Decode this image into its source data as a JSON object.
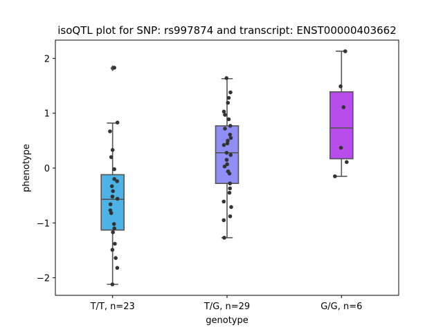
{
  "chart_data": {
    "type": "box",
    "title": "isoQTL plot for SNP: rs997874 and transcript: ENST00000403662",
    "xlabel": "genotype",
    "ylabel": "phenotype",
    "ylim": [
      -2.3,
      2.35
    ],
    "yticks": [
      -2,
      -1,
      0,
      1,
      2
    ],
    "yticklabels": [
      "−2",
      "−1",
      "0",
      "1",
      "2"
    ],
    "grid": false,
    "categories": [
      "T/T, n=23",
      "T/G, n=29",
      "G/G, n=6"
    ],
    "colors": [
      "#4db3e6",
      "#8f8ff5",
      "#b84ced"
    ],
    "point_color": "#333333",
    "boxes": [
      {
        "q1": -1.13,
        "median": -0.57,
        "q3": -0.12,
        "whisker_low": -2.12,
        "whisker_high": 0.82,
        "outliers": [
          1.82
        ]
      },
      {
        "q1": -0.28,
        "median": 0.28,
        "q3": 0.77,
        "whisker_low": -1.27,
        "whisker_high": 1.63,
        "outliers": []
      },
      {
        "q1": 0.17,
        "median": 0.73,
        "q3": 1.39,
        "whisker_low": -0.15,
        "whisker_high": 2.13,
        "outliers": []
      }
    ],
    "points": [
      [
        {
          "jx": 0.1,
          "y": 1.83
        },
        {
          "jx": -0.15,
          "y": 0.67
        },
        {
          "jx": 0.28,
          "y": 0.83
        },
        {
          "jx": 0.0,
          "y": 0.33
        },
        {
          "jx": -0.08,
          "y": 0.2
        },
        {
          "jx": 0.1,
          "y": -0.02
        },
        {
          "jx": 0.1,
          "y": -0.2
        },
        {
          "jx": 0.26,
          "y": -0.24
        },
        {
          "jx": -0.04,
          "y": -0.33
        },
        {
          "jx": 0.02,
          "y": -0.42
        },
        {
          "jx": -0.01,
          "y": -0.52
        },
        {
          "jx": 0.28,
          "y": -0.56
        },
        {
          "jx": -0.12,
          "y": -0.66
        },
        {
          "jx": -0.13,
          "y": -0.77
        },
        {
          "jx": -0.08,
          "y": -0.82
        },
        {
          "jx": 0.08,
          "y": -1.02
        },
        {
          "jx": 0.1,
          "y": -1.1
        },
        {
          "jx": 0.02,
          "y": -1.17
        },
        {
          "jx": 0.13,
          "y": -1.38
        },
        {
          "jx": -0.01,
          "y": -1.49
        },
        {
          "jx": 0.18,
          "y": -1.64
        },
        {
          "jx": 0.27,
          "y": -1.82
        },
        {
          "jx": -0.01,
          "y": -2.12
        }
      ],
      [
        {
          "jx": -0.03,
          "y": 1.64
        },
        {
          "jx": 0.2,
          "y": 1.38
        },
        {
          "jx": 0.1,
          "y": 1.28
        },
        {
          "jx": 0.05,
          "y": 1.19
        },
        {
          "jx": -0.18,
          "y": 1.03
        },
        {
          "jx": -0.12,
          "y": 0.97
        },
        {
          "jx": 0.1,
          "y": 0.89
        },
        {
          "jx": 0.19,
          "y": 0.77
        },
        {
          "jx": -0.12,
          "y": 0.72
        },
        {
          "jx": 0.17,
          "y": 0.61
        },
        {
          "jx": 0.22,
          "y": 0.55
        },
        {
          "jx": 0.04,
          "y": 0.5
        },
        {
          "jx": 0.02,
          "y": 0.45
        },
        {
          "jx": -0.18,
          "y": 0.42
        },
        {
          "jx": -0.02,
          "y": 0.28
        },
        {
          "jx": 0.21,
          "y": 0.24
        },
        {
          "jx": -0.02,
          "y": 0.15
        },
        {
          "jx": 0.01,
          "y": 0.07
        },
        {
          "jx": -0.14,
          "y": 0.03
        },
        {
          "jx": 0.06,
          "y": -0.06
        },
        {
          "jx": 0.14,
          "y": -0.1
        },
        {
          "jx": 0.17,
          "y": -0.28
        },
        {
          "jx": 0.17,
          "y": -0.37
        },
        {
          "jx": 0.14,
          "y": -0.45
        },
        {
          "jx": -0.19,
          "y": -0.61
        },
        {
          "jx": 0.24,
          "y": -0.71
        },
        {
          "jx": 0.18,
          "y": -0.88
        },
        {
          "jx": -0.19,
          "y": -0.95
        },
        {
          "jx": -0.16,
          "y": -1.27
        }
      ],
      [
        {
          "jx": 0.22,
          "y": 2.13
        },
        {
          "jx": -0.05,
          "y": 1.49
        },
        {
          "jx": 0.12,
          "y": 1.11
        },
        {
          "jx": -0.03,
          "y": 0.37
        },
        {
          "jx": 0.3,
          "y": 0.11
        },
        {
          "jx": -0.38,
          "y": -0.15
        }
      ]
    ]
  }
}
